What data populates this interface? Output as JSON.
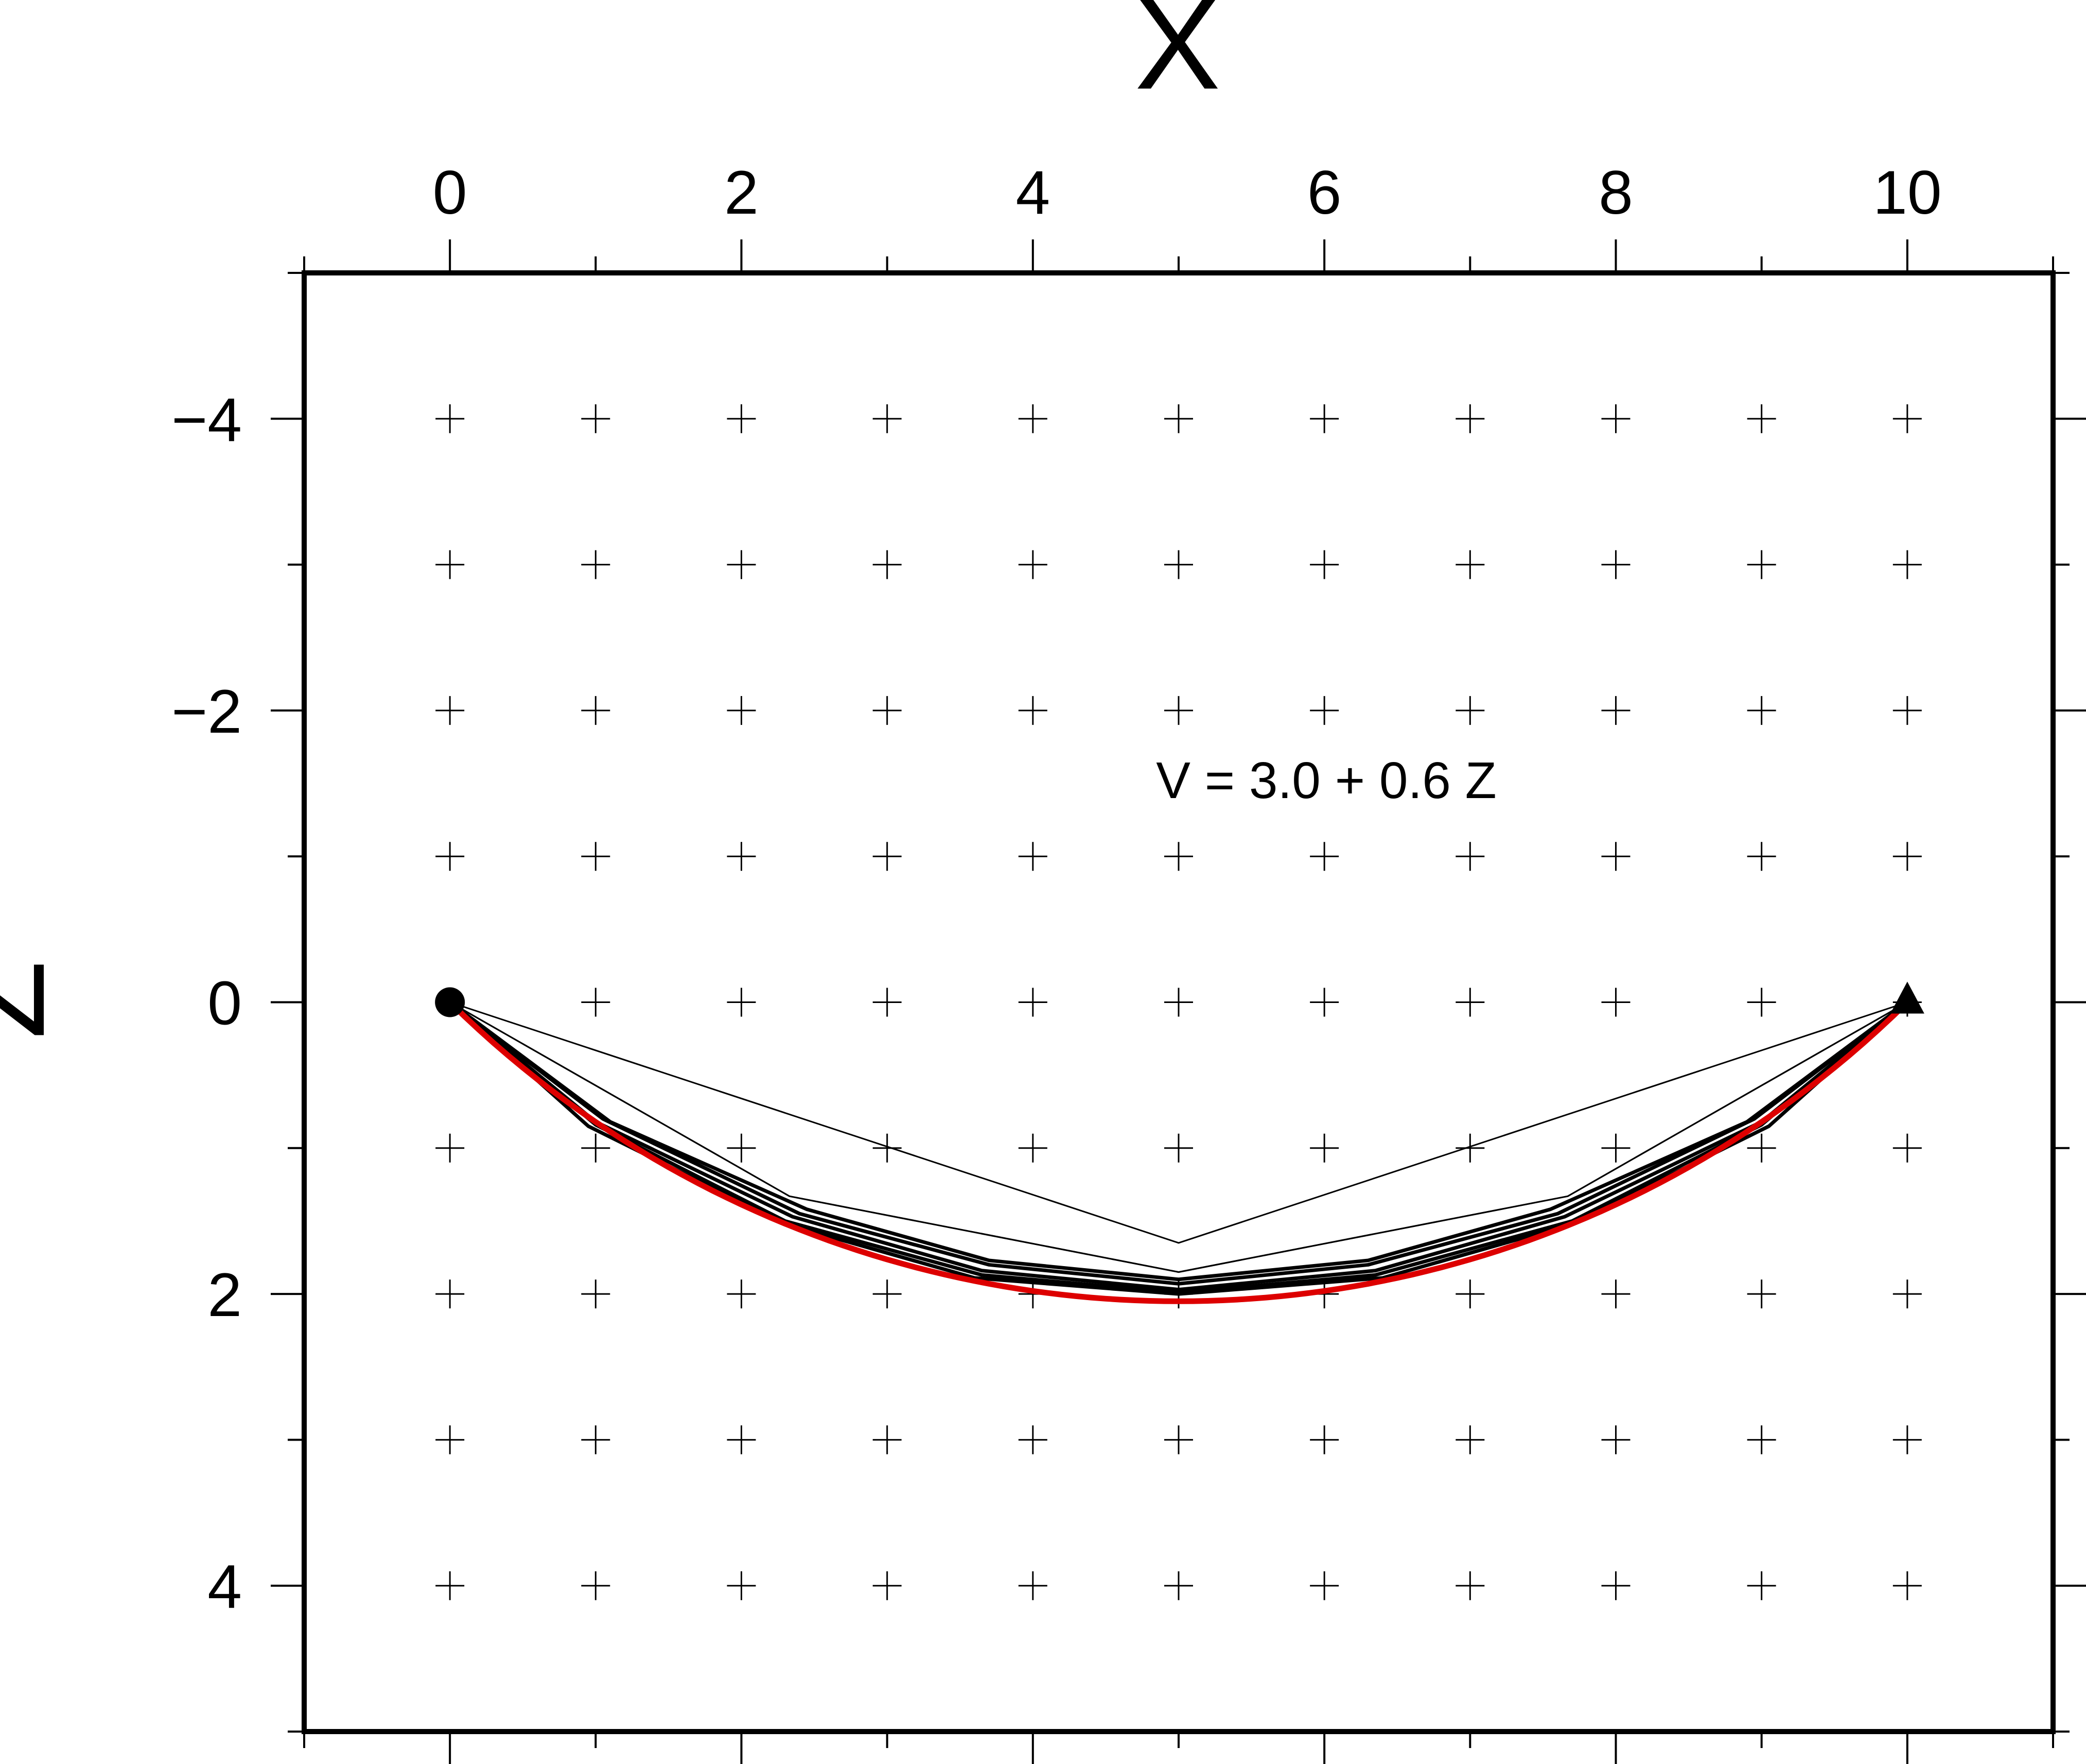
{
  "chart_data": {
    "type": "line",
    "title": "",
    "xlabel": "X",
    "ylabel": "Z",
    "xlim": [
      -1,
      11
    ],
    "ylim": [
      5,
      -5
    ],
    "y_axis_inverted": true,
    "x_ticks": [
      "0",
      "2",
      "4",
      "6",
      "8",
      "10"
    ],
    "x_tick_values": [
      0,
      2,
      4,
      6,
      8,
      10
    ],
    "y_ticks": [
      "−4",
      "−2",
      "0",
      "2",
      "4"
    ],
    "y_tick_values": [
      -4,
      -2,
      0,
      2,
      4
    ],
    "minor_tick_step": 1,
    "grid": "cross markers at integer X and Z",
    "annotation": "V = 3.0 + 0.6 Z",
    "source": {
      "x": 0,
      "z": 0,
      "marker": "circle"
    },
    "receiver": {
      "x": 10,
      "z": 0,
      "marker": "triangle"
    },
    "colors": {
      "ray_paths": "#000000",
      "exact_ray": "#dd0000",
      "frame": "#000000"
    },
    "ray_paths": [
      [
        [
          0,
          0
        ],
        [
          5,
          1.65
        ],
        [
          10,
          0
        ]
      ],
      [
        [
          0,
          0
        ],
        [
          2.33,
          1.33
        ],
        [
          5,
          1.85
        ],
        [
          7.67,
          1.33
        ],
        [
          10,
          0
        ]
      ],
      [
        [
          0,
          0
        ],
        [
          2.33,
          1.33
        ],
        [
          5,
          1.85
        ],
        [
          7.67,
          1.33
        ],
        [
          10,
          0
        ]
      ],
      [
        [
          0,
          0
        ],
        [
          1.1,
          0.82
        ],
        [
          2.45,
          1.42
        ],
        [
          3.7,
          1.77
        ],
        [
          5,
          1.9
        ],
        [
          6.3,
          1.77
        ],
        [
          7.55,
          1.42
        ],
        [
          8.9,
          0.82
        ],
        [
          10,
          0
        ]
      ],
      [
        [
          0,
          0
        ],
        [
          1.05,
          0.8
        ],
        [
          2.4,
          1.45
        ],
        [
          3.7,
          1.8
        ],
        [
          5,
          1.93
        ],
        [
          6.3,
          1.8
        ],
        [
          7.6,
          1.45
        ],
        [
          8.95,
          0.8
        ],
        [
          10,
          0
        ]
      ],
      [
        [
          0,
          0
        ],
        [
          1.0,
          0.82
        ],
        [
          2.35,
          1.47
        ],
        [
          3.65,
          1.84
        ],
        [
          5,
          1.97
        ],
        [
          6.35,
          1.84
        ],
        [
          7.65,
          1.47
        ],
        [
          9.0,
          0.82
        ],
        [
          10,
          0
        ]
      ],
      [
        [
          0,
          0
        ],
        [
          1.0,
          0.84
        ],
        [
          2.3,
          1.5
        ],
        [
          3.65,
          1.87
        ],
        [
          5,
          1.99
        ],
        [
          6.35,
          1.87
        ],
        [
          7.7,
          1.5
        ],
        [
          9.0,
          0.84
        ],
        [
          10,
          0
        ]
      ],
      [
        [
          0,
          0
        ],
        [
          0.95,
          0.85
        ],
        [
          2.3,
          1.52
        ],
        [
          3.6,
          1.89
        ],
        [
          5,
          2.0
        ],
        [
          6.4,
          1.89
        ],
        [
          7.7,
          1.52
        ],
        [
          9.05,
          0.85
        ],
        [
          10,
          0
        ]
      ]
    ],
    "exact_ray": {
      "x_start": 0,
      "x_end": 10,
      "z_at_x_5": 2.05
    }
  }
}
